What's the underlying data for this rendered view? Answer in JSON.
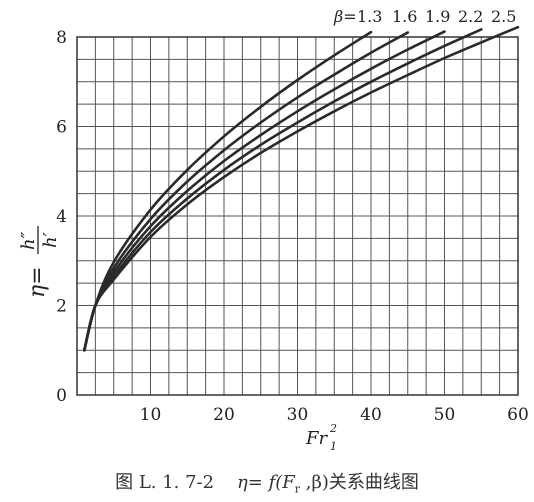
{
  "caption": {
    "prefix": "图 L. 1. 7-2",
    "formula": "η= f(F",
    "sub": "r",
    "rest": " ,β)关系曲线图"
  },
  "chart_data": {
    "type": "line",
    "x": [
      1,
      2.5,
      5,
      10,
      15,
      20,
      25,
      30,
      35,
      40,
      45,
      50,
      55,
      60
    ],
    "series": [
      {
        "name": "1.3",
        "values": [
          1.0,
          2.0,
          2.97,
          4.14,
          5.03,
          5.78,
          6.44,
          7.04,
          7.59,
          8.11,
          null,
          null,
          null,
          null
        ]
      },
      {
        "name": "1.6",
        "values": [
          1.0,
          2.0,
          2.84,
          3.93,
          4.77,
          5.47,
          6.09,
          6.65,
          7.16,
          7.65,
          8.1,
          null,
          null,
          null
        ]
      },
      {
        "name": "1.9",
        "values": [
          1.0,
          2.0,
          2.74,
          3.77,
          4.56,
          5.23,
          5.81,
          6.34,
          6.83,
          7.29,
          7.72,
          8.12,
          null,
          null
        ]
      },
      {
        "name": "2.2",
        "values": [
          1.0,
          2.0,
          2.65,
          3.64,
          4.39,
          5.03,
          5.59,
          6.09,
          6.56,
          7.0,
          7.41,
          7.8,
          8.17,
          null
        ]
      },
      {
        "name": "2.5",
        "values": [
          1.0,
          2.0,
          2.58,
          3.53,
          4.26,
          4.87,
          5.41,
          5.89,
          6.34,
          6.76,
          7.15,
          7.53,
          7.88,
          8.22
        ]
      }
    ],
    "legend_prefix": "β=",
    "xlim": [
      0,
      60
    ],
    "ylim": [
      0,
      8
    ],
    "xticks": [
      "10",
      "20",
      "30",
      "40",
      "50",
      "60"
    ],
    "yticks": [
      "0",
      "2",
      "4",
      "6",
      "8"
    ],
    "ylabel_eta": "η=",
    "ylabel_num": "h″",
    "ylabel_den": "h′",
    "xlabel": "Fr",
    "xlabel_sub": "1",
    "xlabel_sup": "2",
    "grid": true,
    "legend_placement": "top-right"
  }
}
